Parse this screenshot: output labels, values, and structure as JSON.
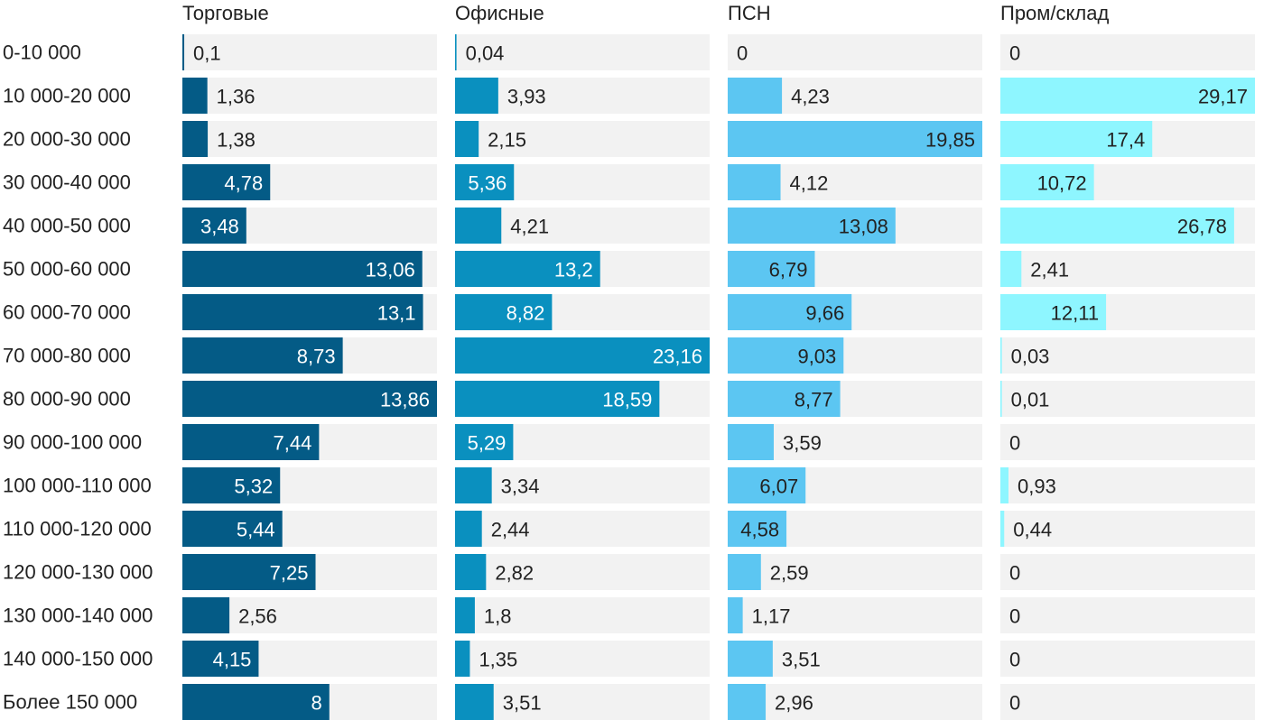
{
  "chart_data": {
    "type": "bar",
    "orientation": "horizontal",
    "categories": [
      "0-10 000",
      "10 000-20 000",
      "20 000-30 000",
      "30 000-40 000",
      "40 000-50 000",
      "50 000-60 000",
      "60 000-70 000",
      "70 000-80 000",
      "80 000-90 000",
      "90 000-100 000",
      "100 000-110 000",
      "110 000-120 000",
      "120 000-130 000",
      "130 000-140 000",
      "140 000-150 000",
      "Более 150 000"
    ],
    "series": [
      {
        "name": "Торговые",
        "color": "#045b86",
        "xlim": [
          0,
          13.86
        ],
        "values": [
          0.1,
          1.36,
          1.38,
          4.78,
          3.48,
          13.06,
          13.1,
          8.73,
          13.86,
          7.44,
          5.32,
          5.44,
          7.25,
          2.56,
          4.15,
          8
        ],
        "labels": [
          "0,1",
          "1,36",
          "1,38",
          "4,78",
          "3,48",
          "13,06",
          "13,1",
          "8,73",
          "13,86",
          "7,44",
          "5,32",
          "5,44",
          "7,25",
          "2,56",
          "4,15",
          "8"
        ]
      },
      {
        "name": "Офисные",
        "color": "#0a90bf",
        "xlim": [
          0,
          23.16
        ],
        "values": [
          0.04,
          3.93,
          2.15,
          5.36,
          4.21,
          13.2,
          8.82,
          23.16,
          18.59,
          5.29,
          3.34,
          2.44,
          2.82,
          1.8,
          1.35,
          3.51
        ],
        "labels": [
          "0,04",
          "3,93",
          "2,15",
          "5,36",
          "4,21",
          "13,2",
          "8,82",
          "23,16",
          "18,59",
          "5,29",
          "3,34",
          "2,44",
          "2,82",
          "1,8",
          "1,35",
          "3,51"
        ]
      },
      {
        "name": "ПСН",
        "color": "#5cc6f2",
        "xlim": [
          0,
          19.85
        ],
        "values": [
          0,
          4.23,
          19.85,
          4.12,
          13.08,
          6.79,
          9.66,
          9.03,
          8.77,
          3.59,
          6.07,
          4.58,
          2.59,
          1.17,
          3.51,
          2.96
        ],
        "labels": [
          "0",
          "4,23",
          "19,85",
          "4,12",
          "13,08",
          "6,79",
          "9,66",
          "9,03",
          "8,77",
          "3,59",
          "6,07",
          "4,58",
          "2,59",
          "1,17",
          "3,51",
          "2,96"
        ]
      },
      {
        "name": "Пром/склад",
        "color": "#8ef6ff",
        "xlim": [
          0,
          29.17
        ],
        "values": [
          0,
          29.17,
          17.4,
          10.72,
          26.78,
          2.41,
          12.11,
          0.03,
          0.01,
          0,
          0.93,
          0.44,
          0,
          0,
          0,
          0
        ],
        "labels": [
          "0",
          "29,17",
          "17,4",
          "10,72",
          "26,78",
          "2,41",
          "12,11",
          "0,03",
          "0,01",
          "0",
          "0,93",
          "0,44",
          "0",
          "0",
          "0",
          "0"
        ]
      }
    ],
    "background_color": "#f2f2f2",
    "inside_label_colors": {
      "Торговые": "#ffffff",
      "Офисные": "#ffffff",
      "ПСН": "#222222",
      "Пром/склад": "#222222"
    }
  }
}
